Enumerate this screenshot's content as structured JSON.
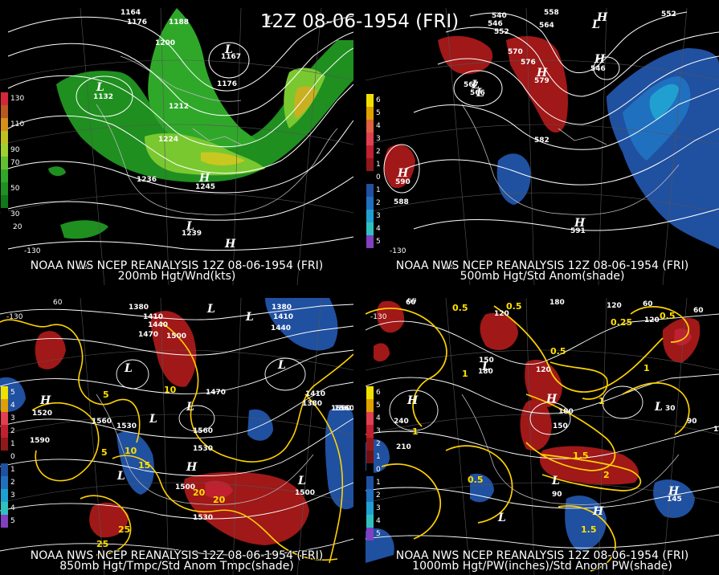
{
  "main_title": "12Z 08-06-1954 (FRI)",
  "panels": [
    {
      "caption_line1": "NOAA NWS NCEP REANALYSIS 12Z 08-06-1954 (FRI)",
      "caption_line2": "200mb Hgt/Wnd(kts)",
      "legend": [
        {
          "label": "130",
          "color": "#d4283a"
        },
        {
          "label": "",
          "color": "#b85a20"
        },
        {
          "label": "110",
          "color": "#d49018"
        },
        {
          "label": "",
          "color": "#c0c020"
        },
        {
          "label": "90",
          "color": "#a0d030"
        },
        {
          "label": "70",
          "color": "#60c030"
        },
        {
          "label": "",
          "color": "#30a828"
        },
        {
          "label": "50",
          "color": "#209020"
        },
        {
          "label": "",
          "color": "#107818"
        },
        {
          "label": "30",
          "color": "#000000"
        }
      ],
      "contour_labels": [
        "1164",
        "1176",
        "1188",
        "1200",
        "1212",
        "1224",
        "1236",
        "1176",
        "1245",
        "1239",
        "1132",
        "1167"
      ],
      "pressure_centers": [
        "L",
        "L",
        "L",
        "H",
        "L",
        "H"
      ],
      "axis_labels": [
        "-130",
        "-120",
        "20"
      ]
    },
    {
      "caption_line1": "NOAA NWS NCEP REANALYSIS 12Z 08-06-1954 (FRI)",
      "caption_line2": "500mb Hgt/Std Anom(shade)",
      "legend": [
        {
          "label": "6",
          "color": "#f0e000"
        },
        {
          "label": "5",
          "color": "#e0a000"
        },
        {
          "label": "4",
          "color": "#e06040"
        },
        {
          "label": "3",
          "color": "#e04050"
        },
        {
          "label": "2",
          "color": "#c02030"
        },
        {
          "label": "1",
          "color": "#901818"
        },
        {
          "label": "0",
          "color": "#000000"
        },
        {
          "label": "1",
          "color": "#2050a0"
        },
        {
          "label": "2",
          "color": "#2070c0"
        },
        {
          "label": "3",
          "color": "#20a0d0"
        },
        {
          "label": "4",
          "color": "#30c0c0"
        },
        {
          "label": "5",
          "color": "#8040c0"
        }
      ],
      "contour_labels": [
        "540",
        "546",
        "552",
        "558",
        "564",
        "570",
        "576",
        "552",
        "582",
        "588",
        "590",
        "591",
        "546",
        "567",
        "566",
        "579"
      ],
      "pressure_centers": [
        "H",
        "H",
        "L",
        "L",
        "L",
        "H",
        "H",
        "H"
      ],
      "axis_labels": [
        "-130",
        "-120"
      ]
    },
    {
      "caption_line1": "NOAA NWS NCEP REANALYSIS 12Z 08-06-1954 (FRI)",
      "caption_line2": "850mb Hgt/Tmpc/Std Anom Tmpc(shade)",
      "legend": [
        {
          "label": "5",
          "color": "#f0e000"
        },
        {
          "label": "4",
          "color": "#e0a000"
        },
        {
          "label": "3",
          "color": "#e04050"
        },
        {
          "label": "2",
          "color": "#c02030"
        },
        {
          "label": "1",
          "color": "#901818"
        },
        {
          "label": "0",
          "color": "#000000"
        },
        {
          "label": "1",
          "color": "#2050a0"
        },
        {
          "label": "2",
          "color": "#2070c0"
        },
        {
          "label": "3",
          "color": "#20a0d0"
        },
        {
          "label": "4",
          "color": "#30c0c0"
        },
        {
          "label": "5",
          "color": "#8040c0"
        }
      ],
      "contour_labels": [
        "1380",
        "1410",
        "1440",
        "1470",
        "1500",
        "1380",
        "1410",
        "1440",
        "1470",
        "1520",
        "1560",
        "1590",
        "1530",
        "1560",
        "1530",
        "1500",
        "1530",
        "1500",
        "1560",
        "1410",
        "1380",
        "1560"
      ],
      "temperature_labels": [
        "5",
        "10",
        "15",
        "20",
        "25",
        "20",
        "25",
        "10",
        "5"
      ],
      "pressure_centers": [
        "L",
        "L",
        "H",
        "L",
        "L",
        "L",
        "L",
        "L",
        "L",
        "H"
      ],
      "axis_labels": [
        "-130",
        "60"
      ]
    },
    {
      "caption_line1": "NOAA NWS NCEP REANALYSIS 12Z 08-06-1954 (FRI)",
      "caption_line2": "1000mb Hgt/PW(inches)/Std Anom PW(shade)",
      "legend": [
        {
          "label": "6",
          "color": "#f0e000"
        },
        {
          "label": "5",
          "color": "#e0a000"
        },
        {
          "label": "4",
          "color": "#e04050"
        },
        {
          "label": "3",
          "color": "#c02030"
        },
        {
          "label": "2",
          "color": "#901818"
        },
        {
          "label": "1",
          "color": "#701010"
        },
        {
          "label": "0",
          "color": "#000000"
        },
        {
          "label": "1",
          "color": "#2050a0"
        },
        {
          "label": "2",
          "color": "#2070c0"
        },
        {
          "label": "3",
          "color": "#20a0d0"
        },
        {
          "label": "4",
          "color": "#30c0c0"
        },
        {
          "label": "5",
          "color": "#8040c0"
        }
      ],
      "contour_labels": [
        "60",
        "120",
        "180",
        "120",
        "60",
        "120",
        "180",
        "150",
        "210",
        "240",
        "180",
        "150",
        "120",
        "90",
        "60",
        "90",
        "30",
        "150",
        "145"
      ],
      "pw_labels": [
        "0.5",
        "0.5",
        "1",
        "1",
        "0.5",
        "1",
        "1.5",
        "2",
        "1.5",
        "1",
        "0.5",
        "0.25",
        "0.5"
      ],
      "pressure_centers": [
        "H",
        "L",
        "H",
        "L",
        "L",
        "H",
        "L",
        "H"
      ],
      "axis_labels": [
        "60",
        "-130"
      ]
    }
  ]
}
